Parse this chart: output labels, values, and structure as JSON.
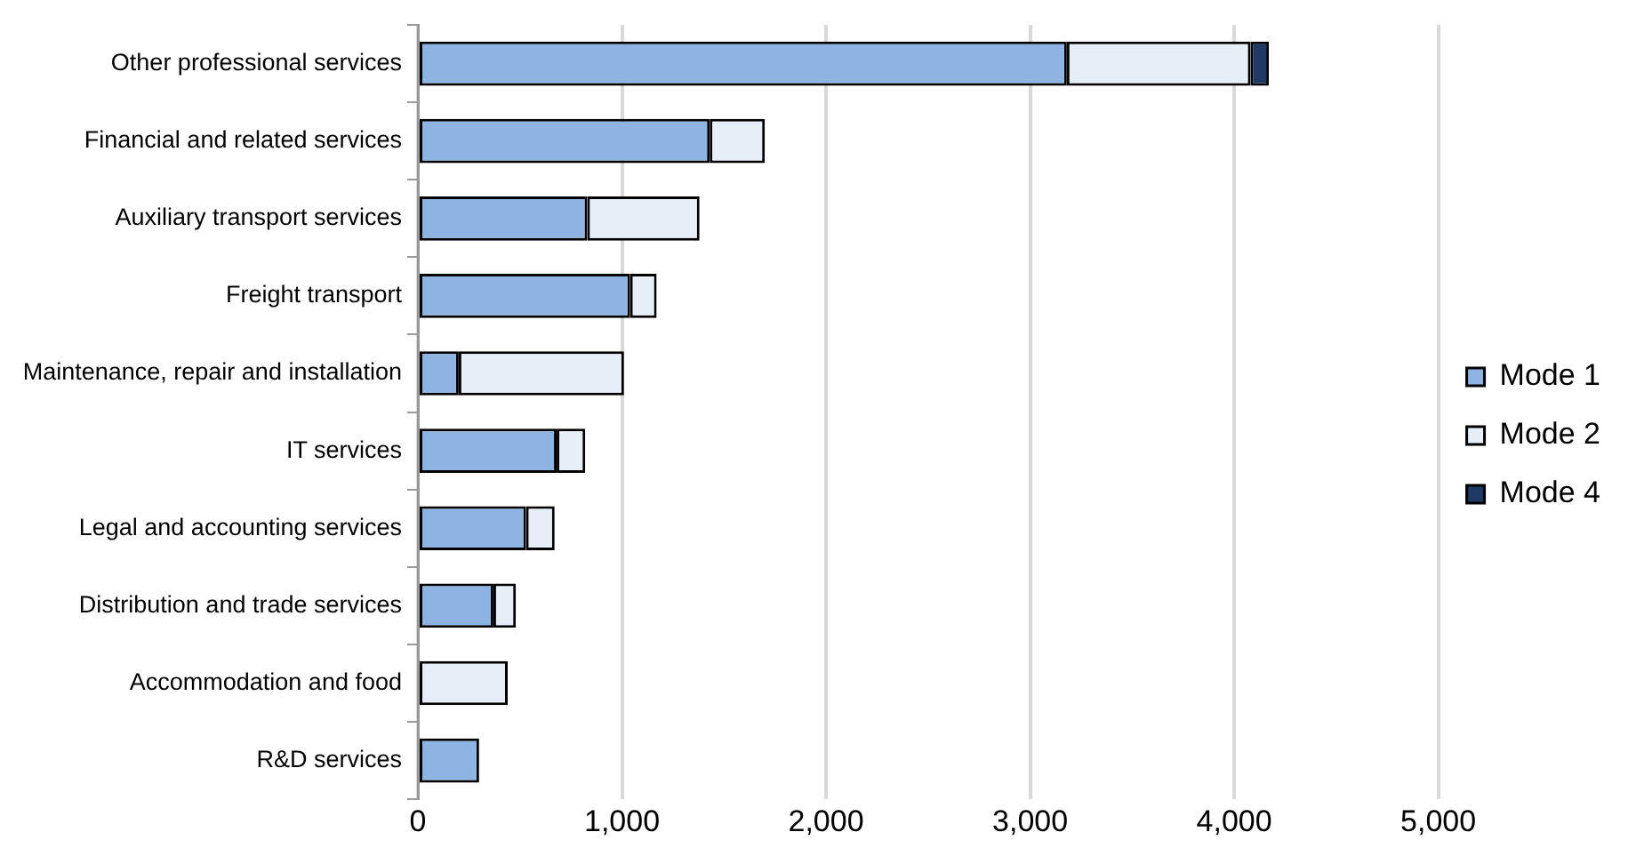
{
  "chart_data": {
    "type": "bar",
    "orientation": "horizontal",
    "stacked": true,
    "categories": [
      "Other professional services",
      "Financial and related services",
      "Auxiliary transport services",
      "Freight transport",
      "Maintenance, repair and installation",
      "IT services",
      "Legal and accounting services",
      "Distribution and trade services",
      "Accommodation and food",
      "R&D services"
    ],
    "series": [
      {
        "name": "Mode 1",
        "color": "#8db4e2",
        "values": [
          3180,
          1430,
          830,
          1040,
          200,
          680,
          530,
          370,
          0,
          300
        ]
      },
      {
        "name": "Mode 2",
        "color": "#e6eef8",
        "values": [
          900,
          270,
          550,
          130,
          810,
          140,
          140,
          110,
          440,
          0
        ]
      },
      {
        "name": "Mode 4",
        "color": "#1f3864",
        "values": [
          90,
          0,
          0,
          0,
          0,
          0,
          0,
          0,
          0,
          0
        ]
      }
    ],
    "xlim": [
      0,
      5000
    ],
    "xticks": [
      {
        "value": 0,
        "label": "0"
      },
      {
        "value": 1000,
        "label": "1,000"
      },
      {
        "value": 2000,
        "label": "2,000"
      },
      {
        "value": 3000,
        "label": "3,000"
      },
      {
        "value": 4000,
        "label": "4,000"
      },
      {
        "value": 5000,
        "label": "5,000"
      }
    ],
    "grid": "x",
    "legend": "right"
  }
}
